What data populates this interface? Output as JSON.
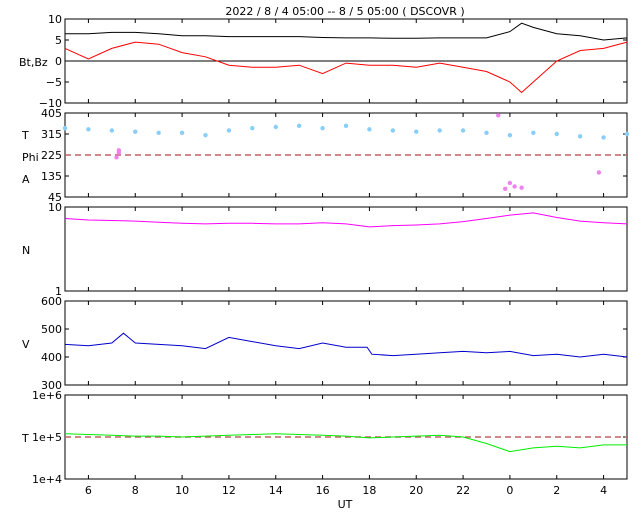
{
  "title": "2022 /  8 /  4   05:00 --   8 /  5   05:00 ( DSCOVR )",
  "xlabel": "UT",
  "x_tick_labels": [
    "6",
    "8",
    "10",
    "12",
    "14",
    "16",
    "18",
    "20",
    "22",
    "0",
    "2",
    "4"
  ],
  "colors": {
    "bt": "#000000",
    "bz": "#ff0000",
    "theta": "#87cefa",
    "phi": "#ee82ee",
    "density": "#ff00ff",
    "speed": "#0000cc",
    "temperature": "#00ee00",
    "reference_line": "#c06060"
  },
  "chart_data": [
    {
      "type": "line",
      "panel": "magnetic_field",
      "ylabel": "Bt,Bz",
      "y_ticks": [
        "10",
        "5",
        "0",
        "−5",
        "−10"
      ],
      "ylim": [
        -10,
        10
      ],
      "x_hours_ut": [
        5,
        6,
        7,
        8,
        9,
        10,
        11,
        12,
        13,
        14,
        15,
        16,
        17,
        18,
        19,
        20,
        21,
        22,
        23,
        24,
        24.5,
        25,
        26,
        27,
        28,
        29
      ],
      "series": [
        {
          "key": "bt",
          "values": [
            6.5,
            6.5,
            6.8,
            6.8,
            6.5,
            6.0,
            6.0,
            5.8,
            5.8,
            5.8,
            5.8,
            5.6,
            5.5,
            5.5,
            5.4,
            5.4,
            5.5,
            5.5,
            5.5,
            7.0,
            9.0,
            8.0,
            6.5,
            6.0,
            5.0,
            5.5
          ]
        },
        {
          "key": "bz",
          "values": [
            3.0,
            0.5,
            3.0,
            4.5,
            4.0,
            2.0,
            1.0,
            -1.0,
            -1.5,
            -1.5,
            -1.0,
            -3.0,
            -0.5,
            -1.0,
            -1.0,
            -1.5,
            -0.5,
            -1.5,
            -2.5,
            -5.0,
            -7.5,
            -5.0,
            0.0,
            2.5,
            3.0,
            4.5
          ]
        }
      ]
    },
    {
      "type": "scatter",
      "panel": "theta_phi",
      "ylabel_top": "T",
      "ylabel_mid": "Phi",
      "ylabel_bottom": "A",
      "y_ticks": [
        "405",
        "315",
        "225",
        "135",
        "45"
      ],
      "ylim": [
        45,
        405
      ],
      "reference_line": 225,
      "x_hours_ut": [
        5,
        6,
        7,
        8,
        9,
        10,
        11,
        12,
        13,
        14,
        15,
        16,
        17,
        18,
        19,
        20,
        21,
        22,
        23,
        24,
        25,
        26,
        27,
        28,
        29
      ],
      "series": [
        {
          "key": "theta",
          "values": [
            340,
            335,
            330,
            325,
            320,
            320,
            310,
            330,
            340,
            345,
            350,
            340,
            350,
            335,
            330,
            325,
            330,
            330,
            320,
            310,
            320,
            315,
            305,
            300,
            315
          ]
        },
        {
          "key": "phi",
          "points": [
            [
              7.3,
              235
            ],
            [
              7.3,
              245
            ],
            [
              7.2,
              215
            ],
            [
              23.5,
              395
            ],
            [
              24.0,
              105
            ],
            [
              24.2,
              90
            ],
            [
              24.5,
              85
            ],
            [
              23.8,
              80
            ],
            [
              27.8,
              150
            ]
          ]
        }
      ]
    },
    {
      "type": "line",
      "panel": "density",
      "ylabel": "N",
      "y_ticks": [
        "10",
        "1"
      ],
      "scale": "log",
      "ylim": [
        1,
        10
      ],
      "x_hours_ut": [
        5,
        6,
        7,
        8,
        9,
        10,
        11,
        12,
        13,
        14,
        15,
        16,
        17,
        18,
        19,
        20,
        21,
        22,
        23,
        24,
        25,
        26,
        27,
        28,
        29
      ],
      "series": [
        {
          "key": "density",
          "values": [
            7.3,
            7.0,
            6.9,
            6.8,
            6.6,
            6.4,
            6.3,
            6.4,
            6.4,
            6.3,
            6.3,
            6.5,
            6.3,
            5.8,
            6.0,
            6.1,
            6.3,
            6.7,
            7.3,
            8.0,
            8.5,
            7.5,
            6.8,
            6.5,
            6.3
          ]
        }
      ]
    },
    {
      "type": "line",
      "panel": "speed",
      "ylabel": "V",
      "y_ticks": [
        "600",
        "500",
        "400",
        "300"
      ],
      "ylim": [
        300,
        600
      ],
      "x_hours_ut": [
        5,
        6,
        7,
        7.5,
        8,
        9,
        10,
        11,
        12,
        13,
        14,
        15,
        16,
        17,
        17.9,
        18.1,
        19,
        20,
        21,
        22,
        23,
        24,
        25,
        26,
        27,
        28,
        29
      ],
      "series": [
        {
          "key": "speed",
          "values": [
            445,
            440,
            450,
            485,
            450,
            445,
            440,
            430,
            470,
            455,
            440,
            430,
            450,
            435,
            435,
            410,
            405,
            410,
            415,
            420,
            415,
            420,
            405,
            410,
            400,
            410,
            400
          ]
        }
      ]
    },
    {
      "type": "line",
      "panel": "temperature",
      "ylabel": "T",
      "y_ticks": [
        "1e+6",
        "1e+5",
        "1e+4"
      ],
      "scale": "log",
      "ylim": [
        10000,
        1000000
      ],
      "reference_line": 100000,
      "x_hours_ut": [
        5,
        6,
        7,
        8,
        9,
        10,
        11,
        12,
        13,
        14,
        15,
        16,
        17,
        18,
        19,
        20,
        21,
        22,
        23,
        24,
        25,
        26,
        27,
        28,
        29
      ],
      "series": [
        {
          "key": "temperature",
          "values": [
            120000,
            115000,
            110000,
            105000,
            105000,
            100000,
            105000,
            110000,
            115000,
            120000,
            115000,
            110000,
            105000,
            95000,
            100000,
            105000,
            110000,
            100000,
            70000,
            45000,
            55000,
            60000,
            55000,
            65000,
            65000
          ]
        }
      ]
    }
  ]
}
